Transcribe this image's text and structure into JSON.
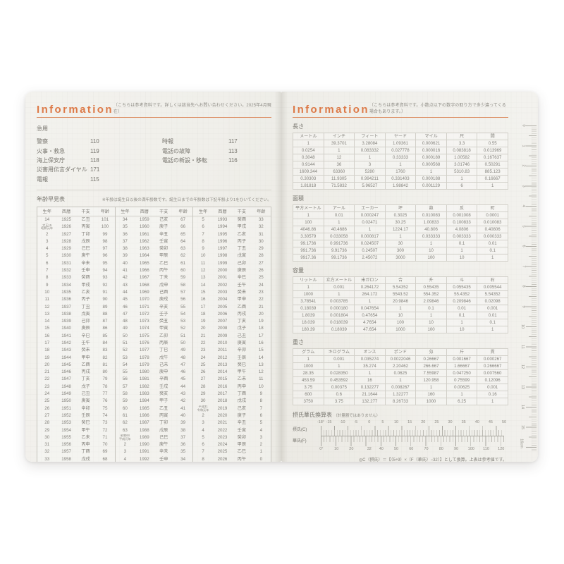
{
  "left_page": {
    "header": {
      "title": "Information",
      "note": "（こちらは参考資料です。詳しくは該当先へお問い合わせください。2025年4月現在）"
    },
    "emergency": {
      "title": "急用",
      "items_left": [
        [
          "警察",
          "110"
        ],
        [
          "火事・救急",
          "119"
        ],
        [
          "海上保安庁",
          "118"
        ],
        [
          "災害用伝言ダイヤル",
          "171"
        ],
        [
          "電報",
          "115"
        ]
      ],
      "items_right": [
        [
          "時報",
          "117"
        ],
        [
          "電話の故障",
          "113"
        ],
        [
          "電話の新設・移転",
          "116"
        ]
      ]
    },
    "age_table": {
      "title": "年齢早見表",
      "note": "※年齢は誕生日以後の満年齢数です。誕生日までの年齢数は下記年齢より1をひいてください。",
      "headers": [
        "生年",
        "西暦",
        "干支",
        "年齢"
      ],
      "blocks": [
        [
          [
            "14",
            "1925",
            "乙丑",
            "101"
          ],
          [
            "大正15\n昭和元年",
            "1926",
            "丙寅",
            "100"
          ],
          [
            "2",
            "1927",
            "丁卯",
            "99"
          ],
          [
            "3",
            "1928",
            "戊辰",
            "98"
          ],
          [
            "4",
            "1929",
            "己巳",
            "97"
          ],
          [
            "5",
            "1930",
            "庚午",
            "96"
          ],
          [
            "6",
            "1931",
            "辛未",
            "95"
          ],
          [
            "7",
            "1932",
            "壬申",
            "94"
          ],
          [
            "8",
            "1933",
            "癸酉",
            "93"
          ],
          [
            "9",
            "1934",
            "甲戌",
            "92"
          ],
          [
            "10",
            "1935",
            "乙亥",
            "91"
          ],
          [
            "11",
            "1936",
            "丙子",
            "90"
          ],
          [
            "12",
            "1937",
            "丁丑",
            "89"
          ],
          [
            "13",
            "1938",
            "戊寅",
            "88"
          ],
          [
            "14",
            "1939",
            "己卯",
            "87"
          ],
          [
            "15",
            "1940",
            "庚辰",
            "86"
          ],
          [
            "16",
            "1941",
            "辛巳",
            "85"
          ],
          [
            "17",
            "1942",
            "壬午",
            "84"
          ],
          [
            "18",
            "1943",
            "癸未",
            "83"
          ],
          [
            "19",
            "1944",
            "甲申",
            "82"
          ],
          [
            "20",
            "1945",
            "乙酉",
            "81"
          ],
          [
            "21",
            "1946",
            "丙戌",
            "80"
          ],
          [
            "22",
            "1947",
            "丁亥",
            "79"
          ],
          [
            "23",
            "1948",
            "戊子",
            "78"
          ],
          [
            "24",
            "1949",
            "己丑",
            "77"
          ],
          [
            "25",
            "1950",
            "庚寅",
            "76"
          ],
          [
            "26",
            "1951",
            "辛卯",
            "75"
          ],
          [
            "27",
            "1952",
            "壬辰",
            "74"
          ],
          [
            "28",
            "1953",
            "癸巳",
            "73"
          ],
          [
            "29",
            "1954",
            "甲午",
            "72"
          ],
          [
            "30",
            "1955",
            "乙未",
            "71"
          ],
          [
            "31",
            "1956",
            "丙申",
            "70"
          ],
          [
            "32",
            "1957",
            "丁酉",
            "69"
          ],
          [
            "33",
            "1958",
            "戊戌",
            "68"
          ]
        ],
        [
          [
            "34",
            "1959",
            "己亥",
            "67"
          ],
          [
            "35",
            "1960",
            "庚子",
            "66"
          ],
          [
            "36",
            "1961",
            "辛丑",
            "65"
          ],
          [
            "37",
            "1962",
            "壬寅",
            "64"
          ],
          [
            "38",
            "1963",
            "癸卯",
            "63"
          ],
          [
            "39",
            "1964",
            "甲辰",
            "62"
          ],
          [
            "40",
            "1965",
            "乙巳",
            "61"
          ],
          [
            "41",
            "1966",
            "丙午",
            "60"
          ],
          [
            "42",
            "1967",
            "丁未",
            "59"
          ],
          [
            "43",
            "1968",
            "戊申",
            "58"
          ],
          [
            "44",
            "1969",
            "己酉",
            "57"
          ],
          [
            "45",
            "1970",
            "庚戌",
            "56"
          ],
          [
            "46",
            "1971",
            "辛亥",
            "55"
          ],
          [
            "47",
            "1972",
            "壬子",
            "54"
          ],
          [
            "48",
            "1973",
            "癸丑",
            "53"
          ],
          [
            "49",
            "1974",
            "甲寅",
            "52"
          ],
          [
            "50",
            "1975",
            "乙卯",
            "51"
          ],
          [
            "51",
            "1976",
            "丙辰",
            "50"
          ],
          [
            "52",
            "1977",
            "丁巳",
            "49"
          ],
          [
            "53",
            "1978",
            "戊午",
            "48"
          ],
          [
            "54",
            "1979",
            "己未",
            "47"
          ],
          [
            "55",
            "1980",
            "庚申",
            "46"
          ],
          [
            "56",
            "1981",
            "辛酉",
            "45"
          ],
          [
            "57",
            "1982",
            "壬戌",
            "44"
          ],
          [
            "58",
            "1983",
            "癸亥",
            "43"
          ],
          [
            "59",
            "1984",
            "甲子",
            "42"
          ],
          [
            "60",
            "1985",
            "乙丑",
            "41"
          ],
          [
            "61",
            "1986",
            "丙寅",
            "40"
          ],
          [
            "62",
            "1987",
            "丁卯",
            "39"
          ],
          [
            "63",
            "1988",
            "戊辰",
            "38"
          ],
          [
            "昭和64\n平成元年",
            "1989",
            "己巳",
            "37"
          ],
          [
            "2",
            "1990",
            "庚午",
            "36"
          ],
          [
            "3",
            "1991",
            "辛未",
            "35"
          ],
          [
            "4",
            "1992",
            "壬申",
            "34"
          ]
        ],
        [
          [
            "5",
            "1993",
            "癸酉",
            "33"
          ],
          [
            "6",
            "1994",
            "甲戌",
            "32"
          ],
          [
            "7",
            "1995",
            "乙亥",
            "31"
          ],
          [
            "8",
            "1996",
            "丙子",
            "30"
          ],
          [
            "9",
            "1997",
            "丁丑",
            "29"
          ],
          [
            "10",
            "1998",
            "戊寅",
            "28"
          ],
          [
            "11",
            "1999",
            "己卯",
            "27"
          ],
          [
            "12",
            "2000",
            "庚辰",
            "26"
          ],
          [
            "13",
            "2001",
            "辛巳",
            "25"
          ],
          [
            "14",
            "2002",
            "壬午",
            "24"
          ],
          [
            "15",
            "2003",
            "癸未",
            "23"
          ],
          [
            "16",
            "2004",
            "甲申",
            "22"
          ],
          [
            "17",
            "2005",
            "乙酉",
            "21"
          ],
          [
            "18",
            "2006",
            "丙戌",
            "20"
          ],
          [
            "19",
            "2007",
            "丁亥",
            "19"
          ],
          [
            "20",
            "2008",
            "戊子",
            "18"
          ],
          [
            "21",
            "2009",
            "己丑",
            "17"
          ],
          [
            "22",
            "2010",
            "庚寅",
            "16"
          ],
          [
            "23",
            "2011",
            "辛卯",
            "15"
          ],
          [
            "24",
            "2012",
            "壬辰",
            "14"
          ],
          [
            "25",
            "2013",
            "癸巳",
            "13"
          ],
          [
            "26",
            "2014",
            "甲午",
            "12"
          ],
          [
            "27",
            "2015",
            "乙未",
            "11"
          ],
          [
            "28",
            "2016",
            "丙申",
            "10"
          ],
          [
            "29",
            "2017",
            "丁酉",
            "9"
          ],
          [
            "30",
            "2018",
            "戊戌",
            "8"
          ],
          [
            "平成31\n令和元年",
            "2019",
            "己亥",
            "7"
          ],
          [
            "2",
            "2020",
            "庚子",
            "6"
          ],
          [
            "3",
            "2021",
            "辛丑",
            "5"
          ],
          [
            "4",
            "2022",
            "壬寅",
            "4"
          ],
          [
            "5",
            "2023",
            "癸卯",
            "3"
          ],
          [
            "6",
            "2024",
            "甲辰",
            "2"
          ],
          [
            "7",
            "2025",
            "乙巳",
            "1"
          ],
          [
            "8",
            "2026",
            "丙午",
            "0"
          ]
        ]
      ]
    }
  },
  "right_page": {
    "header": {
      "title": "Information",
      "note": "（こちらは参考資料です。小数点以下の数字の取り方で多少違ってくる場合もあります。）"
    },
    "tables": [
      {
        "title": "長さ",
        "headers": [
          "メートル",
          "インチ",
          "フィート",
          "ヤード",
          "マイル",
          "尺",
          "間"
        ],
        "rows": [
          [
            "1",
            "39.3701",
            "3.28084",
            "1.09361",
            "0.000621",
            "3.3",
            "0.55"
          ],
          [
            "0.0254",
            "1",
            "0.083332",
            "0.027778",
            "0.000016",
            "0.083818",
            "0.013969"
          ],
          [
            "0.3048",
            "12",
            "1",
            "0.33333",
            "0.000189",
            "1.00582",
            "0.167637"
          ],
          [
            "0.9144",
            "36",
            "3",
            "1",
            "0.000568",
            "3.01746",
            "0.50291"
          ],
          [
            "1609.344",
            "63360",
            "5280",
            "1760",
            "1",
            "5310.83",
            "885.123"
          ],
          [
            "0.30303",
            "11.9305",
            "0.994211",
            "0.331403",
            "0.000188",
            "1",
            "0.16667"
          ],
          [
            "1.81818",
            "71.5832",
            "5.96527",
            "1.98842",
            "0.001129",
            "6",
            "1"
          ]
        ]
      },
      {
        "title": "面積",
        "headers": [
          "平方メートル",
          "アール",
          "エーカー",
          "坪",
          "畝",
          "反",
          "町"
        ],
        "rows": [
          [
            "1",
            "0.01",
            "0.000247",
            "0.3025",
            "0.010083",
            "0.001008",
            "0.0001"
          ],
          [
            "100",
            "1",
            "0.02471",
            "30.25",
            "1.00833",
            "0.100833",
            "0.010083"
          ],
          [
            "4046.86",
            "40.4686",
            "1",
            "1224.17",
            "40.806",
            "4.0806",
            "0.40806"
          ],
          [
            "3.30579",
            "0.033058",
            "0.000817",
            "1",
            "0.033333",
            "0.003333",
            "0.000333"
          ],
          [
            "99.1736",
            "0.991736",
            "0.024507",
            "30",
            "1",
            "0.1",
            "0.01"
          ],
          [
            "991.736",
            "9.91736",
            "0.24507",
            "300",
            "10",
            "1",
            "0.1"
          ],
          [
            "9917.36",
            "99.1736",
            "2.45072",
            "3000",
            "100",
            "10",
            "1"
          ]
        ]
      },
      {
        "title": "容量",
        "headers": [
          "リットル",
          "立方メートル",
          "米ガロン",
          "合",
          "升",
          "斗",
          "石"
        ],
        "rows": [
          [
            "1",
            "0.001",
            "0.264172",
            "5.54352",
            "0.55435",
            "0.055435",
            "0.005544"
          ],
          [
            "1000",
            "1",
            "264.172",
            "5543.52",
            "554.352",
            "55.4352",
            "5.54352"
          ],
          [
            "3.78541",
            "0.003785",
            "1",
            "20.9846",
            "2.09846",
            "0.209846",
            "0.02098"
          ],
          [
            "0.18039",
            "0.000180",
            "0.047654",
            "1",
            "0.1",
            "0.01",
            "0.001"
          ],
          [
            "1.8039",
            "0.001804",
            "0.47654",
            "10",
            "1",
            "0.1",
            "0.01"
          ],
          [
            "18.039",
            "0.018039",
            "4.7654",
            "100",
            "10",
            "1",
            "0.1"
          ],
          [
            "180.39",
            "0.18039",
            "47.654",
            "1000",
            "100",
            "10",
            "1"
          ]
        ]
      },
      {
        "title": "重さ",
        "headers": [
          "グラム",
          "キログラム",
          "オンス",
          "ポンド",
          "匁",
          "斤",
          "貫"
        ],
        "rows": [
          [
            "1",
            "0.001",
            "0.035274",
            "0.0022046",
            "0.26667",
            "0.001667",
            "0.000267"
          ],
          [
            "1000",
            "1",
            "35.274",
            "2.20462",
            "266.667",
            "1.66667",
            "0.266667"
          ],
          [
            "28.35",
            "0.028350",
            "1",
            "0.0625",
            "7.55987",
            "0.047250",
            "0.007560"
          ],
          [
            "453.59",
            "0.453592",
            "16",
            "1",
            "120.958",
            "0.75599",
            "0.12096"
          ],
          [
            "3.75",
            "0.00375",
            "0.132277",
            "0.008267",
            "1",
            "0.00625",
            "0.001"
          ],
          [
            "600",
            "0.6",
            "21.1644",
            "1.32277",
            "160",
            "1",
            "0.16"
          ],
          [
            "3750",
            "3.75",
            "132.277",
            "8.26733",
            "1000",
            "6.25",
            "1"
          ]
        ]
      }
    ],
    "temperature": {
      "title": "摂氏華氏換算表",
      "subtitle": "（計量器ではありません）",
      "celsius_label": "摂氏(C)",
      "fahrenheit_label": "華氏(F)",
      "celsius_ticks": [
        "-18°",
        "-15",
        "-10",
        "-5",
        "0",
        "5",
        "10",
        "15",
        "20",
        "25",
        "30",
        "35",
        "40",
        "45",
        "50"
      ],
      "fahrenheit_ticks": [
        "0°",
        "10",
        "20",
        "32",
        "40",
        "50",
        "60",
        "70",
        "80",
        "90",
        "100",
        "110",
        "120"
      ],
      "formula": "◎C（摂氏）＝【（5÷9）×（F（華氏）−32）】として換算。上表は参考値です。"
    },
    "ruler": {
      "numbers": [
        "0",
        "1",
        "2",
        "3",
        "4",
        "5",
        "6",
        "7",
        "8",
        "9",
        "10",
        "11",
        "12",
        "13",
        "14",
        "15"
      ],
      "unit_label": "16cm"
    }
  },
  "colors": {
    "accent_orange": "#dd7a48",
    "page_cream": "#f0efea",
    "ink_gray": "#83817b"
  }
}
